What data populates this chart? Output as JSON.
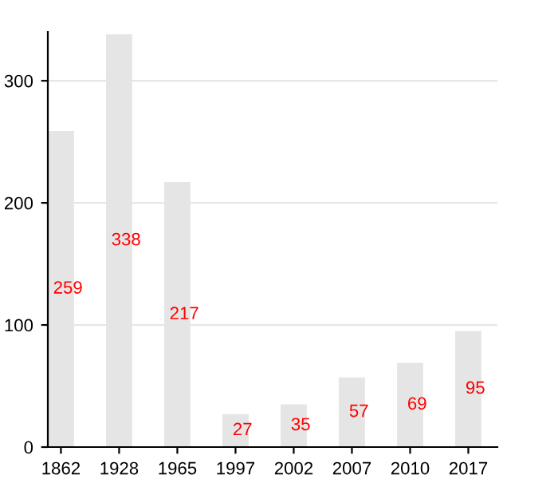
{
  "chart_data": {
    "type": "bar",
    "categories": [
      "1862",
      "1928",
      "1965",
      "1997",
      "2002",
      "2007",
      "2010",
      "2017"
    ],
    "values": [
      259,
      338,
      217,
      27,
      35,
      57,
      69,
      95
    ],
    "color": "#e5e5e5",
    "data_labels": true,
    "ylim": [
      0,
      340
    ],
    "yticks": [
      0,
      100,
      200,
      300
    ],
    "grid": "y"
  }
}
